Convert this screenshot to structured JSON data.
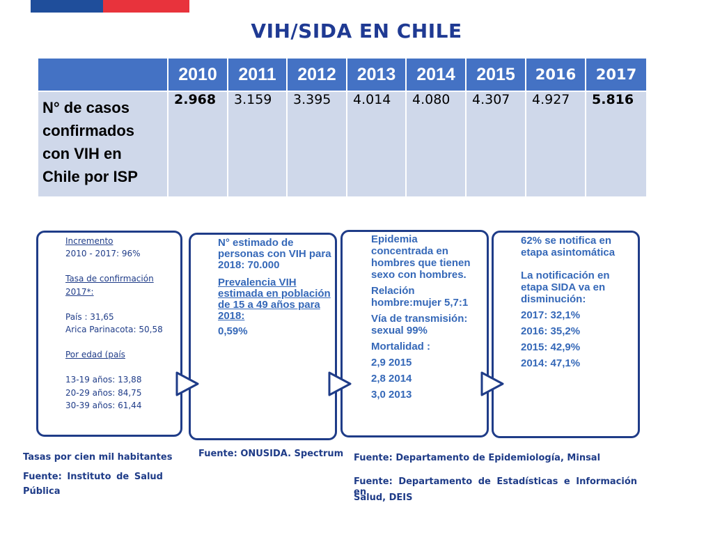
{
  "title": "VIH/SIDA EN CHILE",
  "table": {
    "years": [
      "2010",
      "2011",
      "2012",
      "2013",
      "2014",
      "2015",
      "2016",
      "2017"
    ],
    "row_label_lines": [
      "N° de casos",
      "confirmados",
      "con VIH en",
      "Chile por ISP"
    ],
    "values": [
      "2.968",
      "3.159",
      "3.395",
      "4.014",
      "4.080",
      "4.307",
      "4.927",
      "5.816"
    ]
  },
  "box1": {
    "incremento_label": "Incremento",
    "incremento_value": "2010 - 2017:  96%",
    "tasa_label_1": "Tasa de confirmación",
    "tasa_label_2": "2017*:",
    "pais": "País : 31,65",
    "arica": "Arica Parinacota: 50,58",
    "edad_label": "Por edad (país",
    "edad_1": "13-19 años: 13,88",
    "edad_2": "20-29 años: 84,75",
    "edad_3": "30-39 años: 61,44"
  },
  "box2": {
    "estimado": "N° estimado de personas con VIH para 2018: 70.000",
    "prevalencia_label": "Prevalencia VIH estimada en población de 15 a 49 años para 2018:",
    "prevalencia_value": "0,59%"
  },
  "box3": {
    "epidemia": "Epidemia concentrada en hombres que tienen sexo con hombres.",
    "relacion": "Relación hombre:mujer 5,7:1",
    "via": "Vía de transmisión: sexual 99%",
    "mortalidad_label": "Mortalidad :",
    "mort_1": "2,9  2015",
    "mort_2": "2,8  2014",
    "mort_3": "3,0  2013"
  },
  "box4": {
    "asintomatica": "62% se notifica en etapa asintomática",
    "sida": "La notificación en etapa SIDA va en disminución:",
    "y2017": "2017: 32,1%",
    "y2016": "2016: 35,2%",
    "y2015": "2015: 42,9%",
    "y2014": "2014: 47,1%"
  },
  "sources": {
    "tasas": "Tasas por cien mil habitantes",
    "isp_1": "Fuente:  Instituto  de  Salud",
    "isp_2": "Pública",
    "onusida": "Fuente: ONUSIDA. Spectrum",
    "epidemiologia": "Fuente: Departamento de Epidemiología, Minsal",
    "deis_1": "Fuente: Departamento de Estadísticas e Información en",
    "deis_2": "Salud, DEIS"
  },
  "colors": {
    "header_blue": "#4472c4",
    "row_light": "#cfd8ea",
    "title_navy": "#1f3a93",
    "flag_red": "#e8333c"
  }
}
